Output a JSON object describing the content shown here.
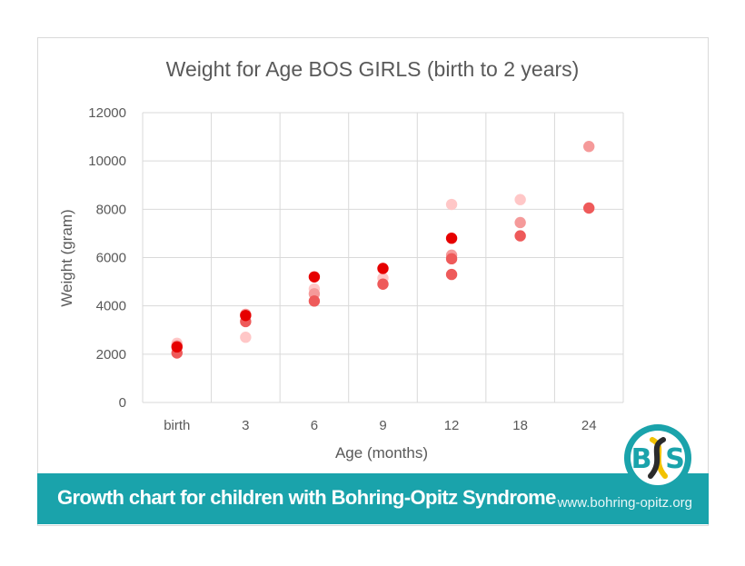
{
  "chart_data": {
    "type": "scatter",
    "title": "Weight for Age BOS GIRLS (birth to 2 years)",
    "xlabel": "Age (months)",
    "ylabel": "Weight (gram)",
    "categories": [
      "birth",
      "3",
      "6",
      "9",
      "12",
      "18",
      "24"
    ],
    "ylim": [
      0,
      12000
    ],
    "yticks": [
      0,
      2000,
      4000,
      6000,
      8000,
      10000,
      12000
    ],
    "grid": true,
    "legend": "none",
    "series": [
      {
        "color": "#ffc7c7",
        "points": [
          [
            "birth",
            2450
          ],
          [
            "3",
            2700
          ],
          [
            "6",
            4700
          ],
          [
            "9",
            5150
          ],
          [
            "12",
            8200
          ],
          [
            "18",
            8400
          ]
        ]
      },
      {
        "color": "#f59a9a",
        "points": [
          [
            "birth",
            2350
          ],
          [
            "3",
            3650
          ],
          [
            "6",
            4500
          ],
          [
            "12",
            6100
          ],
          [
            "18",
            7450
          ],
          [
            "24",
            10600
          ]
        ]
      },
      {
        "color": "#ee5a5a",
        "points": [
          [
            "birth",
            2050
          ],
          [
            "3",
            3350
          ],
          [
            "6",
            4200
          ],
          [
            "9",
            4900
          ],
          [
            "12",
            5950
          ],
          [
            "12",
            5300
          ],
          [
            "18",
            6900
          ],
          [
            "24",
            8050
          ]
        ]
      },
      {
        "color": "#e60000",
        "points": [
          [
            "birth",
            2300
          ],
          [
            "3",
            3600
          ],
          [
            "6",
            5200
          ],
          [
            "9",
            5550
          ],
          [
            "12",
            6800
          ]
        ]
      }
    ]
  },
  "footer": {
    "title": "Growth chart for children with Bohring-Opitz Syndrome",
    "site": "www.bohring-opitz.org",
    "colors": {
      "band": "#1aa3ab",
      "logo_ring": "#1aa3ab"
    }
  },
  "logo": {
    "icon": "bos-ribbon-logo"
  }
}
